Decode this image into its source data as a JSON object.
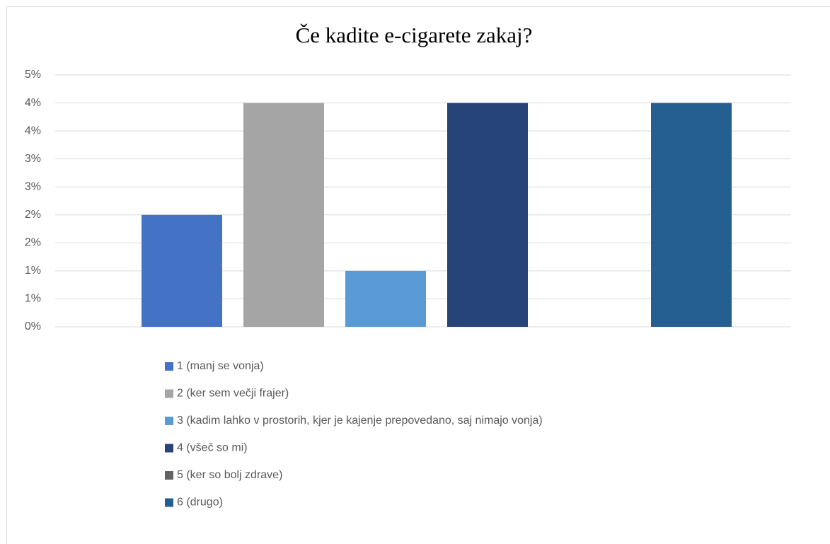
{
  "chart_data": {
    "type": "bar",
    "title": "Če kadite e-cigarete zakaj?",
    "categories": [
      "1 (manj se vonja)",
      "2 (ker sem večji frajer)",
      "3 (kadim lahko v prostorih, kjer je kajenje prepovedano, saj nimajo vonja)",
      "4 (všeč so mi)",
      "5 (ker so bolj zdrave)",
      "6 (drugo)"
    ],
    "values": [
      2,
      4,
      1,
      4,
      0,
      4
    ],
    "colors": [
      "#4472c4",
      "#a5a5a5",
      "#5b9bd5",
      "#264478",
      "#636363",
      "#255e91"
    ],
    "ylim": [
      0,
      4.5
    ],
    "yticks": [
      {
        "value": 0,
        "label": "0%"
      },
      {
        "value": 0.5,
        "label": "1%"
      },
      {
        "value": 1,
        "label": "1%"
      },
      {
        "value": 1.5,
        "label": "2%"
      },
      {
        "value": 2,
        "label": "2%"
      },
      {
        "value": 2.5,
        "label": "3%"
      },
      {
        "value": 3,
        "label": "3%"
      },
      {
        "value": 3.5,
        "label": "4%"
      },
      {
        "value": 4,
        "label": "4%"
      },
      {
        "value": 4.5,
        "label": "5%"
      }
    ],
    "grid": true,
    "legend": "bottom"
  }
}
